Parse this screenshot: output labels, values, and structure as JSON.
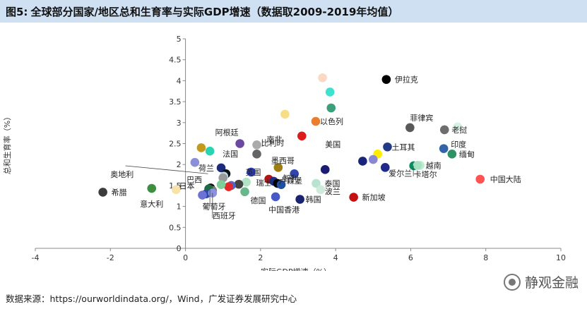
{
  "figure": {
    "number": "图5:",
    "title": "全球部分国家/地区总和生育率与实际GDP增速（数据取2009-2019年均值）"
  },
  "source": "数据来源：https://ourworldindata.org/，Wind，广发证券发展研究中心",
  "watermark": "静观金融",
  "chart_data": {
    "type": "scatter",
    "xlabel": "实际GDP增速（%）",
    "ylabel": "总和生育率（%）",
    "xlim": [
      -4,
      10
    ],
    "ylim": [
      0,
      5
    ],
    "xticks": [
      -4,
      -2,
      0,
      2,
      4,
      6,
      8,
      10
    ],
    "xtick_labels": [
      "-4",
      "-2",
      "0",
      "2",
      "4",
      "6",
      "8",
      "10"
    ],
    "yticks": [
      0,
      0.5,
      1,
      1.5,
      2,
      2.5,
      3,
      3.5,
      4,
      4.5,
      5
    ],
    "ytick_labels": [
      "0",
      "0.5",
      "1",
      "1.5",
      "2",
      "2.5",
      "3",
      "3.5",
      "4",
      "4.5",
      "5"
    ],
    "grid": false,
    "points": [
      {
        "label": "伊拉克",
        "x": 5.35,
        "y": 4.03,
        "color": "#000000"
      },
      {
        "label": "",
        "x": 3.65,
        "y": 4.07,
        "color": "#fbd9c5"
      },
      {
        "label": "",
        "x": 3.85,
        "y": 3.73,
        "color": "#3de2cf"
      },
      {
        "label": "",
        "x": 3.88,
        "y": 3.35,
        "color": "#3aa07a"
      },
      {
        "label": "",
        "x": 2.65,
        "y": 3.2,
        "color": "#f7de86"
      },
      {
        "label": "以色列",
        "x": 3.47,
        "y": 3.03,
        "color": "#e97e2e"
      },
      {
        "label": "",
        "x": 3.1,
        "y": 2.68,
        "color": "#dd1b1b"
      },
      {
        "label": "菲律宾",
        "x": 5.98,
        "y": 2.88,
        "color": "#595959"
      },
      {
        "label": "",
        "x": 7.25,
        "y": 2.9,
        "color": "#d7f1e4"
      },
      {
        "label": "老挝",
        "x": 6.9,
        "y": 2.83,
        "color": "#6d6d6d"
      },
      {
        "label": "印度",
        "x": 6.88,
        "y": 2.38,
        "color": "#3364a8"
      },
      {
        "label": "缅甸",
        "x": 7.1,
        "y": 2.25,
        "color": "#2e9266"
      },
      {
        "label": "土耳其",
        "x": 5.38,
        "y": 2.42,
        "color": "#253a87"
      },
      {
        "label": "",
        "x": 5.12,
        "y": 2.25,
        "color": "#ffee00"
      },
      {
        "label": "",
        "x": 5.0,
        "y": 2.12,
        "color": "#8a86d6"
      },
      {
        "label": "",
        "x": 4.72,
        "y": 2.08,
        "color": "#18257a"
      },
      {
        "label": "爱尔兰",
        "x": 5.32,
        "y": 1.93,
        "color": "#1f2a8a"
      },
      {
        "label": "越南",
        "x": 6.25,
        "y": 1.98,
        "color": "#bfeccc"
      },
      {
        "label": "卡塔尔",
        "x": 6.08,
        "y": 1.97,
        "color": "#0a8a5f"
      },
      {
        "label": "",
        "x": 6.18,
        "y": 1.98,
        "color": "#a8e0c3"
      },
      {
        "label": "中国大陆",
        "x": 7.85,
        "y": 1.65,
        "color": "#ff5353"
      },
      {
        "label": "新加坡",
        "x": 4.48,
        "y": 1.22,
        "color": "#c31010"
      },
      {
        "label": "阿根廷",
        "x": 1.45,
        "y": 2.5,
        "color": "#6a4aa0"
      },
      {
        "label": "南非",
        "x": 1.9,
        "y": 2.47,
        "color": "#aaaaaa"
      },
      {
        "label": "",
        "x": 0.42,
        "y": 2.4,
        "color": "#c39a1d"
      },
      {
        "label": "法国",
        "x": 0.65,
        "y": 2.32,
        "color": "#2bd3b2"
      },
      {
        "label": "比利时",
        "x": 1.9,
        "y": 2.25,
        "color": "#656565"
      },
      {
        "label": "墨西哥",
        "x": 2.47,
        "y": 1.93,
        "color": "#9e7d13"
      },
      {
        "label": "美国",
        "x": 3.72,
        "y": 1.88,
        "color": "#1c1c70"
      },
      {
        "label": "",
        "x": 0.25,
        "y": 2.05,
        "color": "#8b8ed8"
      },
      {
        "label": "荷兰",
        "x": 0.95,
        "y": 1.92,
        "color": "#1d2b7c"
      },
      {
        "label": "英国",
        "x": 1.75,
        "y": 1.82,
        "color": "#2a3fb6"
      },
      {
        "label": "智利",
        "x": 2.9,
        "y": 1.78,
        "color": "#3047b0"
      },
      {
        "label": "",
        "x": 1.08,
        "y": 1.78,
        "color": "#111111"
      },
      {
        "label": "",
        "x": 1.02,
        "y": 1.72,
        "color": "#b7d9e8"
      },
      {
        "label": "",
        "x": 1.0,
        "y": 1.68,
        "color": "#999999"
      },
      {
        "label": "",
        "x": 2.22,
        "y": 1.65,
        "color": "#b01616"
      },
      {
        "label": "瑞士",
        "x": 2.35,
        "y": 1.6,
        "color": "#1a2f85"
      },
      {
        "label": "卢森堡",
        "x": 2.45,
        "y": 1.55,
        "color": "#000000"
      },
      {
        "label": "泰国",
        "x": 3.48,
        "y": 1.55,
        "color": "#b9e3d1"
      },
      {
        "label": "",
        "x": 1.62,
        "y": 1.58,
        "color": "#b2e3c4"
      },
      {
        "label": "",
        "x": 1.42,
        "y": 1.53,
        "color": "#444444"
      },
      {
        "label": "",
        "x": 1.22,
        "y": 1.5,
        "color": "#5465c4"
      },
      {
        "label": "",
        "x": 1.15,
        "y": 1.47,
        "color": "#e82828"
      },
      {
        "label": "",
        "x": 0.95,
        "y": 1.52,
        "color": "#7ccf96"
      },
      {
        "label": "",
        "x": 2.55,
        "y": 1.52,
        "color": "#1f4fa0"
      },
      {
        "label": "波兰",
        "x": 3.6,
        "y": 1.4,
        "color": "#cdeadb"
      },
      {
        "label": "德国",
        "x": 1.58,
        "y": 1.35,
        "color": "#69b88c"
      },
      {
        "label": "巴西",
        "x": 0.67,
        "y": 1.44,
        "color": "#111111"
      },
      {
        "label": "",
        "x": 0.72,
        "y": 1.38,
        "color": "#7b7b7b"
      },
      {
        "label": "日本",
        "x": 0.62,
        "y": 1.42,
        "color": "#1e6d42"
      },
      {
        "label": "",
        "x": 0.55,
        "y": 1.3,
        "color": "#2d49a8"
      },
      {
        "label": "葡萄牙",
        "x": 0.45,
        "y": 1.27,
        "color": "#6c73d4"
      },
      {
        "label": "西班牙",
        "x": 0.72,
        "y": 1.32,
        "color": "#8a92e0"
      },
      {
        "label": "中国香港",
        "x": 2.4,
        "y": 1.23,
        "color": "#4759c7"
      },
      {
        "label": "韩国",
        "x": 3.05,
        "y": 1.17,
        "color": "#19236f"
      },
      {
        "label": "希腊",
        "x": -2.2,
        "y": 1.34,
        "color": "#3c3c3c"
      },
      {
        "label": "意大利",
        "x": -0.9,
        "y": 1.43,
        "color": "#3d8f3f"
      },
      {
        "label": "奥地利",
        "x": -0.25,
        "y": 1.4,
        "color": "#f7e3a8"
      }
    ]
  }
}
